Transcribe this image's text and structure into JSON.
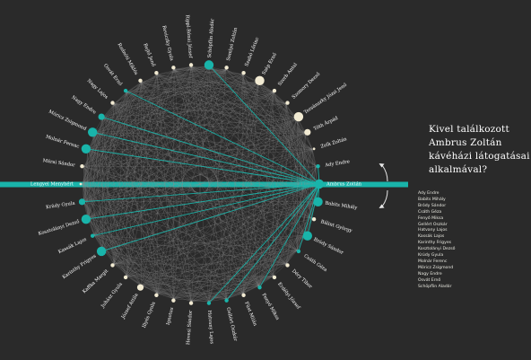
{
  "colors": {
    "background": "#2a2a2a",
    "accent": "#19b4aa",
    "cream": "#f1ead2",
    "web_line": "#8f8f8f",
    "label": "#ffffff"
  },
  "highlight": {
    "name": "Ambrus Zoltán",
    "rotate_arrows": "rotate-arrows-icon"
  },
  "title_lines": [
    "Kivel találkozott",
    "Ambrus Zoltán",
    "kávéházi látogatásai",
    "alkalmával?"
  ],
  "contacts": [
    "Ady Endre",
    "Babits Mihály",
    "Bródy Sándor",
    "Csáth Géza",
    "Fenyő Miksa",
    "Gellért Oszkár",
    "Hatvany Lajos",
    "Kassák Lajos",
    "Karinthy Frigyes",
    "Kosztolányi Dezső",
    "Krúdy Gyula",
    "Molnár Ferenc",
    "Móricz Zsigmond",
    "Nagy Endre",
    "Osvát Ernő",
    "Schöpflin Aladár"
  ],
  "people": [
    {
      "name": "Ambrus Zoltán",
      "size": 4,
      "role": "focus"
    },
    {
      "name": "Babits Mihály",
      "size": 4,
      "role": "contact"
    },
    {
      "name": "Bálint György",
      "size": 2,
      "role": "none"
    },
    {
      "name": "Bródy Sándor",
      "size": 4,
      "role": "contact"
    },
    {
      "name": "Csáth Géza",
      "size": 2,
      "role": "contact"
    },
    {
      "name": "Déry Tibor",
      "size": 2,
      "role": "none"
    },
    {
      "name": "Erdélyi József",
      "size": 2,
      "role": "none"
    },
    {
      "name": "Fenyő Miksa",
      "size": 2,
      "role": "contact"
    },
    {
      "name": "Füst Milán",
      "size": 2,
      "role": "none"
    },
    {
      "name": "Gellért Oszkár",
      "size": 2,
      "role": "contact"
    },
    {
      "name": "Hatvany Lajos",
      "size": 2,
      "role": "contact"
    },
    {
      "name": "Hevesi Sándor",
      "size": 2,
      "role": "none"
    },
    {
      "name": "Ignotus",
      "size": 2,
      "role": "none"
    },
    {
      "name": "Illyés Gyula",
      "size": 2,
      "role": "none"
    },
    {
      "name": "József Attila",
      "size": 3,
      "role": "none"
    },
    {
      "name": "Juhász Gyula",
      "size": 2,
      "role": "none"
    },
    {
      "name": "Kaffka Margit",
      "size": 2,
      "role": "none"
    },
    {
      "name": "Karinthy Frigyes",
      "size": 4,
      "role": "contact"
    },
    {
      "name": "Kassák Lajos",
      "size": 2,
      "role": "contact"
    },
    {
      "name": "Kosztolányi Dezső",
      "size": 4,
      "role": "contact"
    },
    {
      "name": "Krúdy Gyula",
      "size": 3,
      "role": "contact"
    },
    {
      "name": "Lengyel Menyhért",
      "size": 1,
      "role": "none"
    },
    {
      "name": "Márai Sándor",
      "size": 2,
      "role": "none"
    },
    {
      "name": "Molnár Ferenc",
      "size": 4,
      "role": "contact"
    },
    {
      "name": "Móricz Zsigmond",
      "size": 4,
      "role": "contact"
    },
    {
      "name": "Nagy Endre",
      "size": 3,
      "role": "contact"
    },
    {
      "name": "Nagy Lajos",
      "size": 2,
      "role": "none"
    },
    {
      "name": "Osvát Ernő",
      "size": 2,
      "role": "contact"
    },
    {
      "name": "Radnóti Miklós",
      "size": 2,
      "role": "none"
    },
    {
      "name": "Rejtő Jenő",
      "size": 2,
      "role": "none"
    },
    {
      "name": "Reviczky Gyula",
      "size": 2,
      "role": "none"
    },
    {
      "name": "Rippl-Rónai József",
      "size": 2,
      "role": "none"
    },
    {
      "name": "Schöpflin Aladár",
      "size": 4,
      "role": "contact"
    },
    {
      "name": "Somlyó Zoltán",
      "size": 2,
      "role": "none"
    },
    {
      "name": "Szabó Lőrinc",
      "size": 2,
      "role": "none"
    },
    {
      "name": "Szép Ernő",
      "size": 4,
      "role": "none"
    },
    {
      "name": "Szerb Antal",
      "size": 2,
      "role": "none"
    },
    {
      "name": "Szomory Dezső",
      "size": 2,
      "role": "none"
    },
    {
      "name": "Tersánszky Józsi Jenő",
      "size": 4,
      "role": "none"
    },
    {
      "name": "Tóth Árpád",
      "size": 3,
      "role": "none"
    },
    {
      "name": "Zelk Zoltán",
      "size": 1,
      "role": "none"
    },
    {
      "name": "Ady Endre",
      "size": 2,
      "role": "contact"
    }
  ]
}
